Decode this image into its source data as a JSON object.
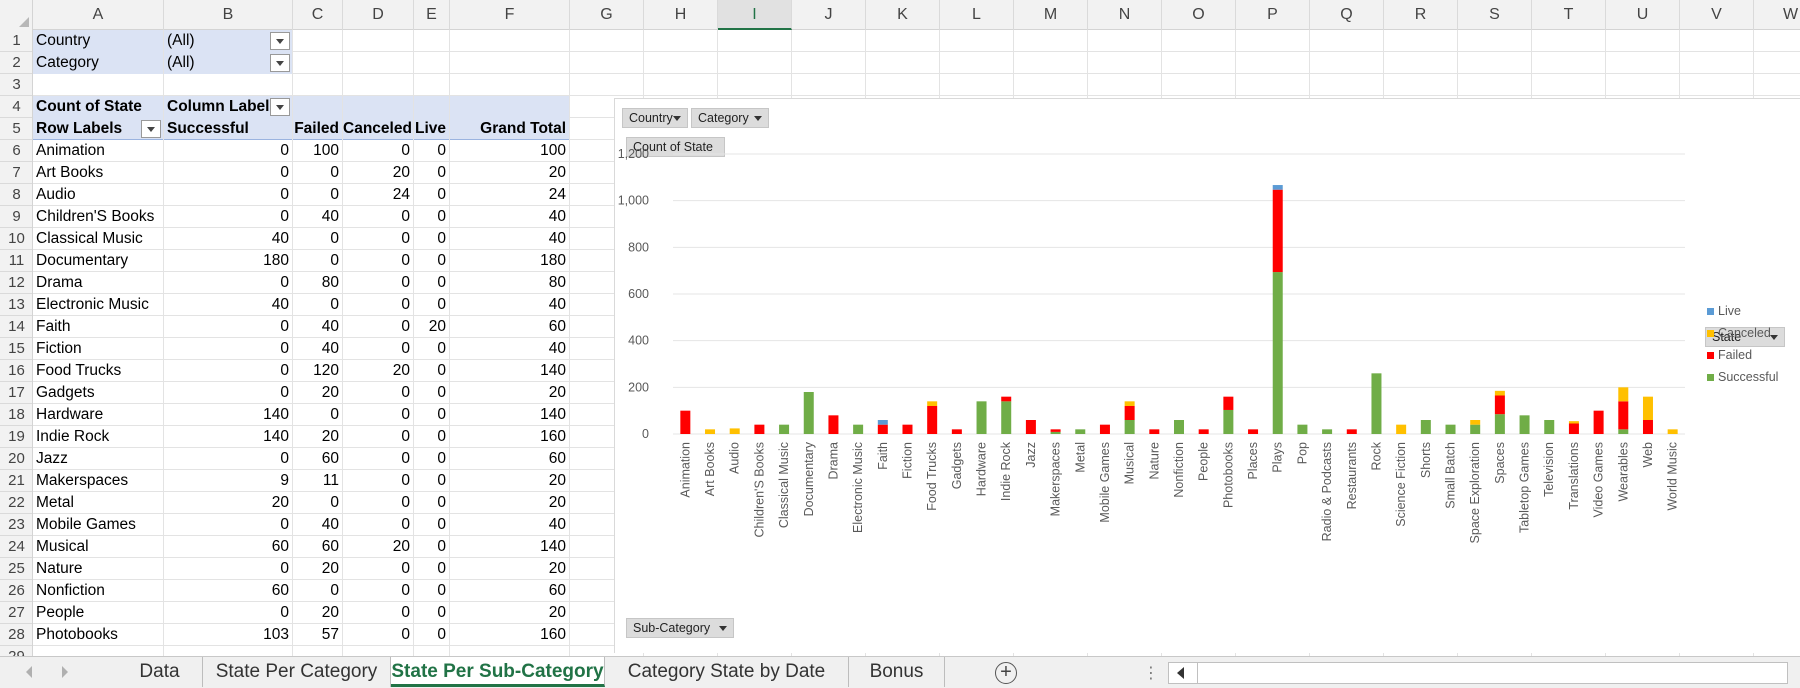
{
  "columns": [
    "A",
    "B",
    "C",
    "D",
    "E",
    "F",
    "G",
    "H",
    "I",
    "J",
    "K",
    "L",
    "M",
    "N",
    "O",
    "P",
    "Q",
    "R",
    "S",
    "T",
    "U",
    "V",
    "W"
  ],
  "selected_column": "I",
  "filters": [
    {
      "label": "Country",
      "value": "(All)"
    },
    {
      "label": "Category",
      "value": "(All)"
    }
  ],
  "pivot": {
    "corner_label": "Count of State",
    "column_labels": "Column Labels",
    "row_labels": "Row Labels",
    "headers": [
      "Successful",
      "Failed",
      "Canceled",
      "Live",
      "Grand Total"
    ],
    "rows": [
      {
        "label": "Animation",
        "values": [
          "0",
          "100",
          "0",
          "0",
          "100"
        ]
      },
      {
        "label": "Art Books",
        "values": [
          "0",
          "0",
          "20",
          "0",
          "20"
        ]
      },
      {
        "label": "Audio",
        "values": [
          "0",
          "0",
          "24",
          "0",
          "24"
        ]
      },
      {
        "label": "Children'S Books",
        "values": [
          "0",
          "40",
          "0",
          "0",
          "40"
        ]
      },
      {
        "label": "Classical Music",
        "values": [
          "40",
          "0",
          "0",
          "0",
          "40"
        ]
      },
      {
        "label": "Documentary",
        "values": [
          "180",
          "0",
          "0",
          "0",
          "180"
        ]
      },
      {
        "label": "Drama",
        "values": [
          "0",
          "80",
          "0",
          "0",
          "80"
        ]
      },
      {
        "label": "Electronic Music",
        "values": [
          "40",
          "0",
          "0",
          "0",
          "40"
        ]
      },
      {
        "label": "Faith",
        "values": [
          "0",
          "40",
          "0",
          "20",
          "60"
        ]
      },
      {
        "label": "Fiction",
        "values": [
          "0",
          "40",
          "0",
          "0",
          "40"
        ]
      },
      {
        "label": "Food Trucks",
        "values": [
          "0",
          "120",
          "20",
          "0",
          "140"
        ]
      },
      {
        "label": "Gadgets",
        "values": [
          "0",
          "20",
          "0",
          "0",
          "20"
        ]
      },
      {
        "label": "Hardware",
        "values": [
          "140",
          "0",
          "0",
          "0",
          "140"
        ]
      },
      {
        "label": "Indie Rock",
        "values": [
          "140",
          "20",
          "0",
          "0",
          "160"
        ]
      },
      {
        "label": "Jazz",
        "values": [
          "0",
          "60",
          "0",
          "0",
          "60"
        ]
      },
      {
        "label": "Makerspaces",
        "values": [
          "9",
          "11",
          "0",
          "0",
          "20"
        ]
      },
      {
        "label": "Metal",
        "values": [
          "20",
          "0",
          "0",
          "0",
          "20"
        ]
      },
      {
        "label": "Mobile Games",
        "values": [
          "0",
          "40",
          "0",
          "0",
          "40"
        ]
      },
      {
        "label": "Musical",
        "values": [
          "60",
          "60",
          "20",
          "0",
          "140"
        ]
      },
      {
        "label": "Nature",
        "values": [
          "0",
          "20",
          "0",
          "0",
          "20"
        ]
      },
      {
        "label": "Nonfiction",
        "values": [
          "60",
          "0",
          "0",
          "0",
          "60"
        ]
      },
      {
        "label": "People",
        "values": [
          "0",
          "20",
          "0",
          "0",
          "20"
        ]
      },
      {
        "label": "Photobooks",
        "values": [
          "103",
          "57",
          "0",
          "0",
          "160"
        ]
      }
    ]
  },
  "chart_buttons": {
    "country": "Country",
    "category": "Category",
    "value_field": "Count of State",
    "axis_field": "Sub-Category",
    "legend_field": "State"
  },
  "chart_data": {
    "type": "bar",
    "stacked": true,
    "categories": [
      "Animation",
      "Art Books",
      "Audio",
      "Children'S Books",
      "Classical Music",
      "Documentary",
      "Drama",
      "Electronic Music",
      "Faith",
      "Fiction",
      "Food Trucks",
      "Gadgets",
      "Hardware",
      "Indie Rock",
      "Jazz",
      "Makerspaces",
      "Metal",
      "Mobile Games",
      "Musical",
      "Nature",
      "Nonfiction",
      "People",
      "Photobooks",
      "Places",
      "Plays",
      "Pop",
      "Radio & Podcasts",
      "Restaurants",
      "Rock",
      "Science Fiction",
      "Shorts",
      "Small Batch",
      "Space Exploration",
      "Spaces",
      "Tabletop Games",
      "Television",
      "Translations",
      "Video Games",
      "Wearables",
      "Web",
      "World Music"
    ],
    "series": [
      {
        "name": "Successful",
        "color": "#70ad47",
        "values": [
          0,
          0,
          0,
          0,
          40,
          180,
          0,
          40,
          0,
          0,
          0,
          0,
          140,
          140,
          0,
          9,
          20,
          0,
          60,
          0,
          60,
          0,
          103,
          0,
          694,
          40,
          20,
          0,
          260,
          0,
          60,
          40,
          40,
          85,
          80,
          60,
          0,
          0,
          20,
          0,
          0
        ]
      },
      {
        "name": "Failed",
        "color": "#ff0000",
        "values": [
          100,
          0,
          0,
          40,
          0,
          0,
          80,
          0,
          40,
          40,
          120,
          20,
          0,
          20,
          60,
          11,
          0,
          40,
          60,
          20,
          0,
          20,
          57,
          20,
          353,
          0,
          0,
          20,
          0,
          0,
          0,
          0,
          0,
          80,
          0,
          0,
          45,
          100,
          120,
          60,
          0
        ]
      },
      {
        "name": "Canceled",
        "color": "#ffc000",
        "values": [
          0,
          20,
          24,
          0,
          0,
          0,
          0,
          0,
          0,
          0,
          20,
          0,
          0,
          0,
          0,
          0,
          0,
          0,
          20,
          0,
          0,
          0,
          0,
          0,
          0,
          0,
          0,
          0,
          0,
          40,
          0,
          0,
          20,
          20,
          0,
          0,
          10,
          0,
          60,
          100,
          20
        ]
      },
      {
        "name": "Live",
        "color": "#5b9bd5",
        "values": [
          0,
          0,
          0,
          0,
          0,
          0,
          0,
          0,
          20,
          0,
          0,
          0,
          0,
          0,
          0,
          0,
          0,
          0,
          0,
          0,
          0,
          0,
          0,
          0,
          20,
          0,
          0,
          0,
          0,
          0,
          0,
          0,
          0,
          0,
          0,
          0,
          0,
          0,
          0,
          0,
          0
        ]
      }
    ],
    "legend_order": [
      "Live",
      "Canceled",
      "Failed",
      "Successful"
    ],
    "yticks": [
      "0",
      "200",
      "400",
      "600",
      "800",
      "1,000",
      "1,200"
    ],
    "ylim": [
      0,
      1200
    ],
    "grid": true,
    "legend_position": "right"
  },
  "tabs": [
    {
      "label": "Data"
    },
    {
      "label": "State Per Category"
    },
    {
      "label": "State Per Sub-Category",
      "active": true
    },
    {
      "label": "Category State by Date"
    },
    {
      "label": "Bonus"
    }
  ],
  "add_sheet_glyph": "+",
  "tab_dots": "⋮"
}
